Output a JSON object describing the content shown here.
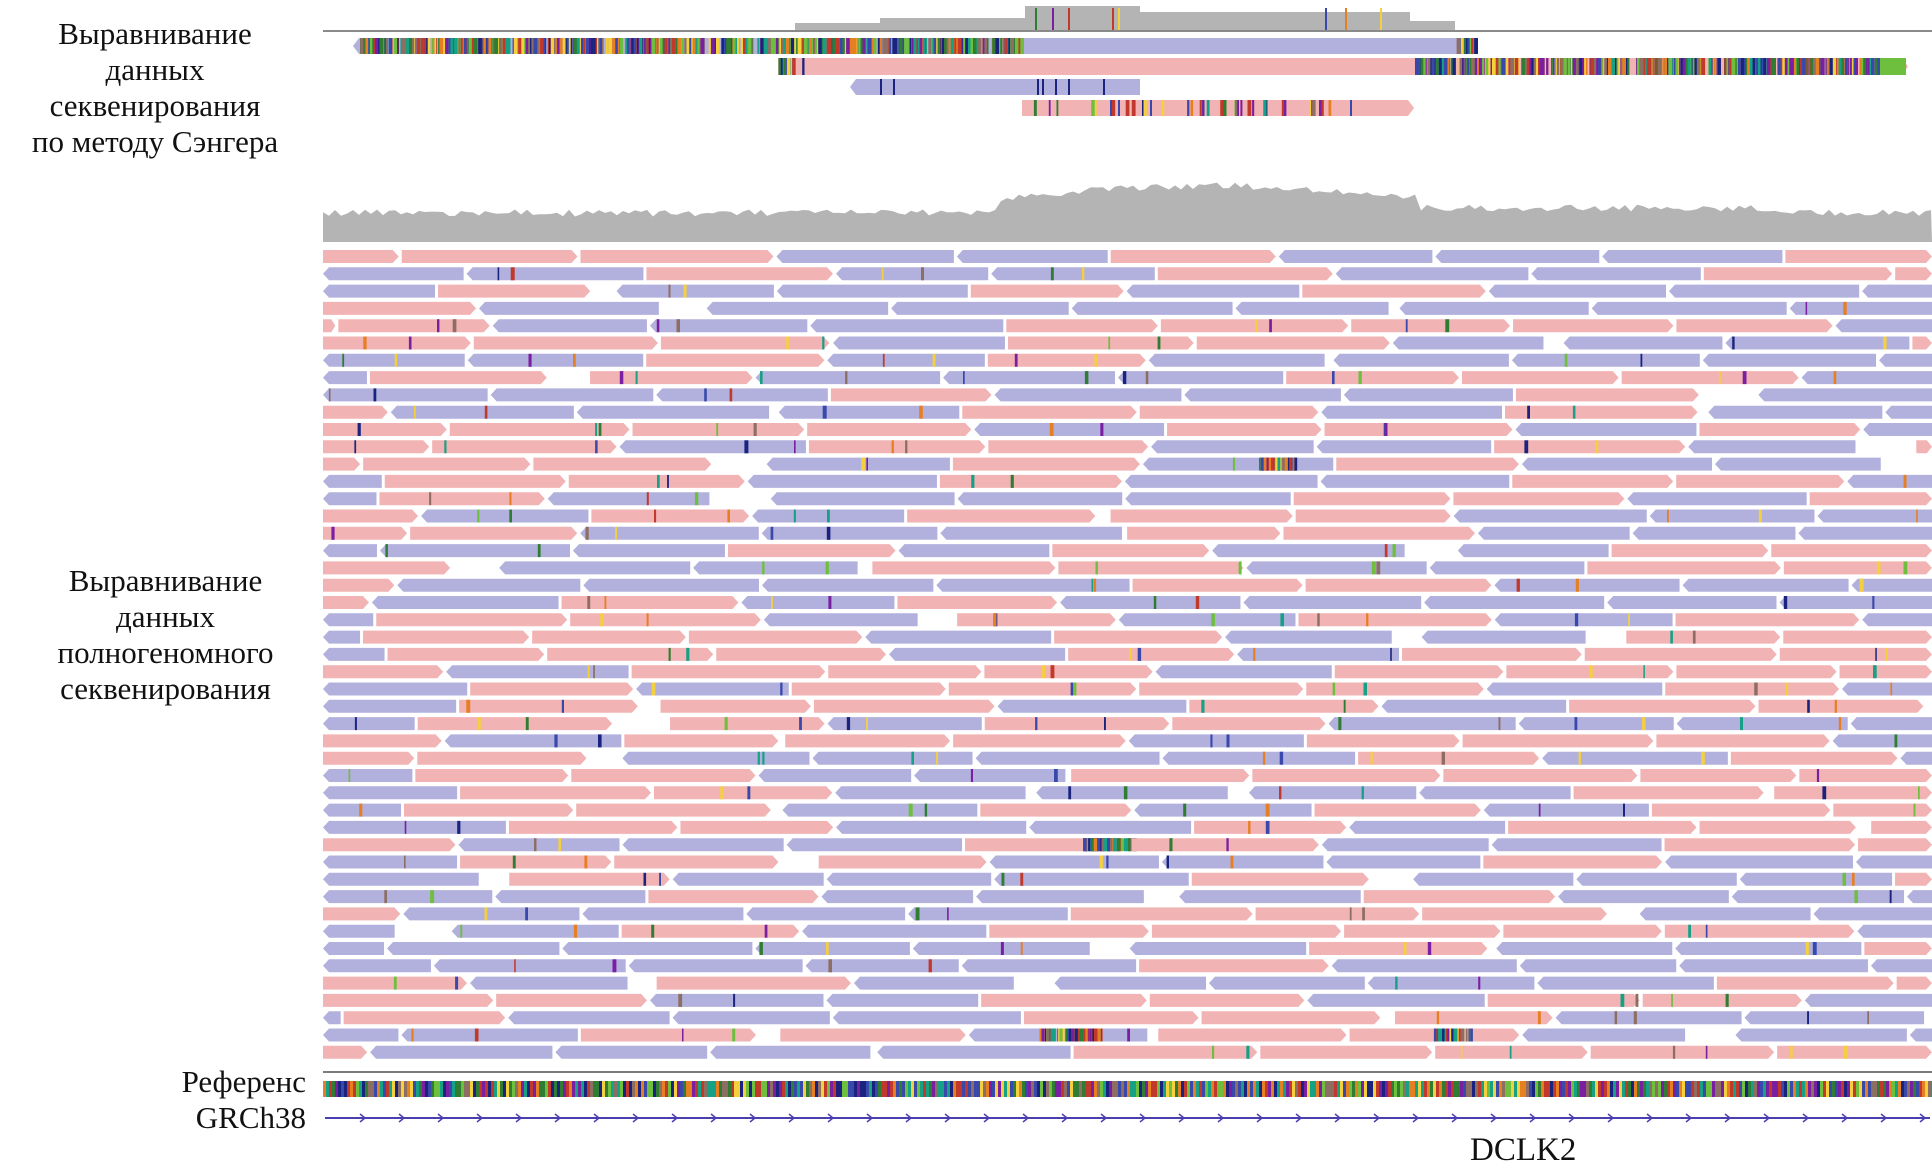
{
  "labels": {
    "sanger": "Выравнивание данных секвенирования по методу Сэнгера",
    "sanger_lines": [
      "Выравнивание",
      "данных",
      "секвенирования",
      "по методу Сэнгера"
    ],
    "wgs": "Выравнивание данных полногеномного секвенирования",
    "wgs_lines": [
      "Выравнивание",
      "данных",
      "полногеномного",
      "секвенирования"
    ],
    "reference_lines": [
      "Референс",
      "GRCh38"
    ],
    "gene": "DCLK2"
  },
  "colors": {
    "forward_read": "#f2b3b4",
    "reverse_read": "#b2b0dd",
    "coverage": "#b4b4b4",
    "separator": "#7b7b7b",
    "gene_track": "#4a3fb0"
  },
  "mismatch_palette": [
    "#2e7d32",
    "#6fbf3f",
    "#c0392b",
    "#e67e22",
    "#1a237e",
    "#3949ab",
    "#8d6e63",
    "#f4d03f",
    "#16a085",
    "#7b1fa2"
  ]
}
